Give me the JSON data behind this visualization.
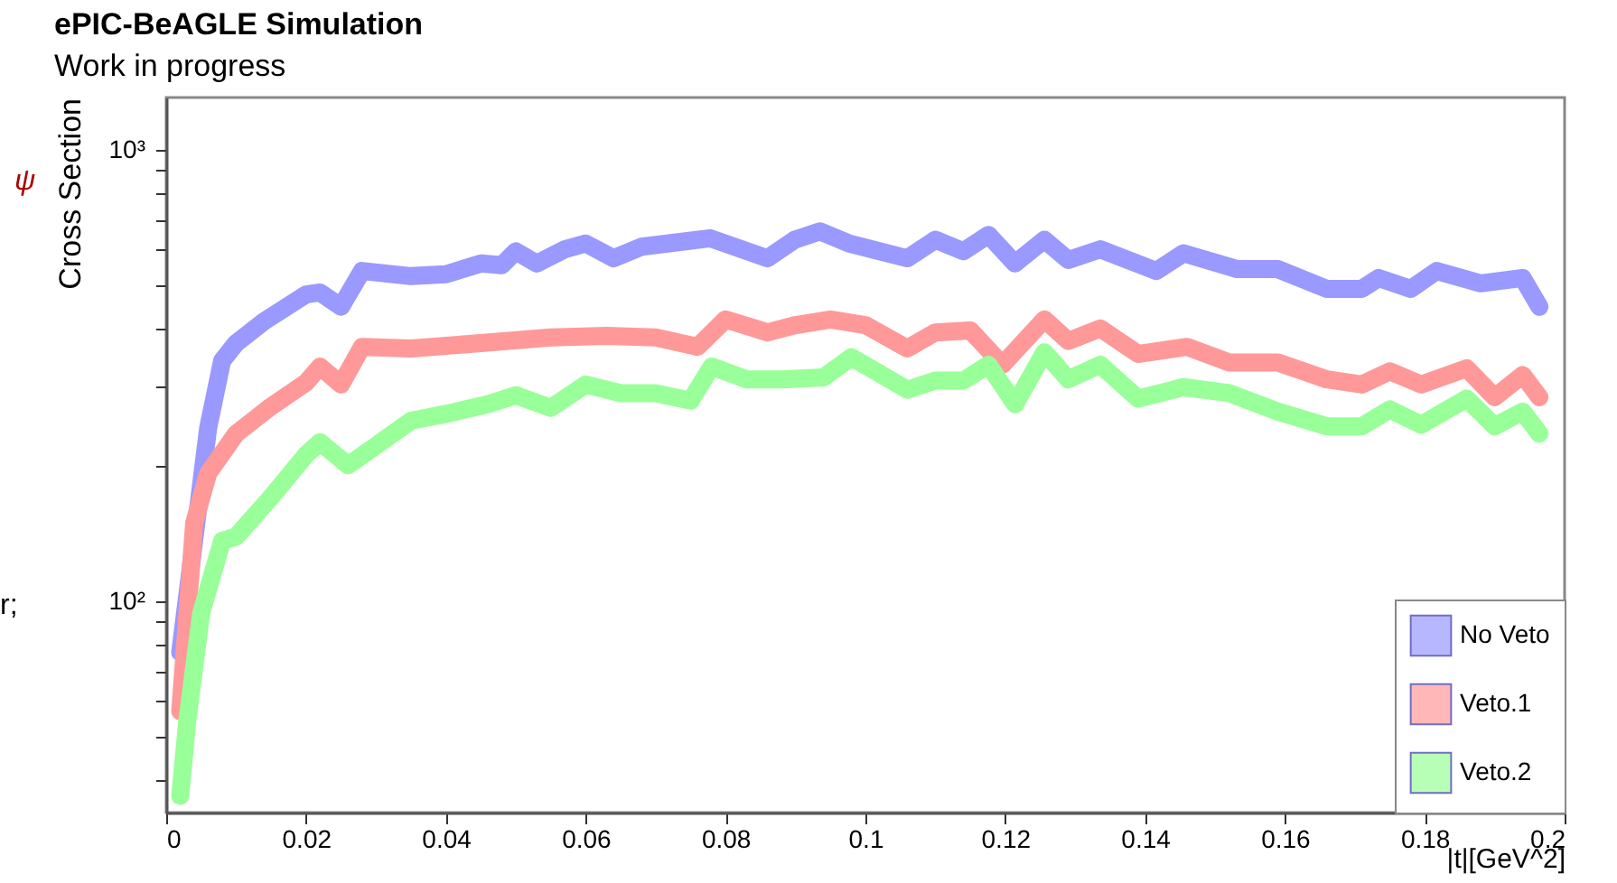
{
  "chart_data": {
    "type": "line",
    "title": "ePIC-BeAGLE Simulation",
    "subtitle": "Work in progress",
    "xlabel": "|t|[GeV^2]",
    "ylabel": "Cross Section",
    "annotations": [
      "ψ",
      "r;"
    ],
    "log": "y",
    "grid": false,
    "legend": "bottom right",
    "marker": "none",
    "line_style": "solid",
    "xlim": [
      0,
      0.2
    ],
    "xticks": [
      0,
      0.02,
      0.04,
      0.06,
      0.08,
      0.1,
      0.12,
      0.14,
      0.16,
      0.18,
      0.2
    ],
    "ylim": [
      34,
      1306
    ],
    "yticks": [
      {
        "value": 40,
        "label": null
      },
      {
        "value": 50,
        "label": null
      },
      {
        "value": 60,
        "label": null
      },
      {
        "value": 70,
        "label": null
      },
      {
        "value": 80,
        "label": null
      },
      {
        "value": 90,
        "label": null
      },
      {
        "value": 100,
        "label": "10²"
      },
      {
        "value": 200,
        "label": null
      },
      {
        "value": 300,
        "label": null
      },
      {
        "value": 400,
        "label": null
      },
      {
        "value": 500,
        "label": null
      },
      {
        "value": 600,
        "label": null
      },
      {
        "value": 700,
        "label": null
      },
      {
        "value": 800,
        "label": null
      },
      {
        "value": 900,
        "label": null
      },
      {
        "value": 1000,
        "label": "10³"
      }
    ],
    "series": [
      {
        "name": "No Veto",
        "color": "#9999ff",
        "x": [
          0.002,
          0.006,
          0.008,
          0.01,
          0.014,
          0.02,
          0.022,
          0.025,
          0.028,
          0.035,
          0.04,
          0.045,
          0.048,
          0.05,
          0.053,
          0.057,
          0.06,
          0.064,
          0.068,
          0.0778,
          0.086,
          0.0899,
          0.0935,
          0.0977,
          0.106,
          0.11,
          0.114,
          0.1176,
          0.1214,
          0.1256,
          0.129,
          0.1336,
          0.1416,
          0.1455,
          0.1532,
          0.159,
          0.166,
          0.171,
          0.1734,
          0.178,
          0.1817,
          0.188,
          0.194,
          0.1964
        ],
        "values": [
          77,
          242,
          341,
          373,
          417,
          478,
          483,
          449,
          539,
          525,
          530,
          560,
          555,
          596,
          560,
          602,
          620,
          575,
          610,
          637,
          575,
          632,
          660,
          620,
          575,
          632,
          596,
          648,
          560,
          632,
          570,
          602,
          539,
          590,
          544,
          544,
          492,
          492,
          520,
          492,
          539,
          506,
          520,
          449
        ]
      },
      {
        "name": "Veto.1",
        "color": "#ff9999",
        "x": [
          0.002,
          0.004,
          0.006,
          0.01,
          0.015,
          0.02,
          0.022,
          0.025,
          0.028,
          0.035,
          0.045,
          0.055,
          0.063,
          0.07,
          0.076,
          0.08,
          0.086,
          0.09,
          0.095,
          0.1,
          0.106,
          0.11,
          0.115,
          0.1196,
          0.1256,
          0.129,
          0.1336,
          0.139,
          0.146,
          0.152,
          0.159,
          0.166,
          0.171,
          0.175,
          0.1795,
          0.186,
          0.19,
          0.194,
          0.1964
        ],
        "values": [
          57,
          149,
          192,
          235,
          270,
          305,
          331,
          302,
          366,
          363,
          373,
          384,
          387,
          384,
          366,
          421,
          394,
          409,
          421,
          409,
          363,
          394,
          398,
          334,
          421,
          377,
          402,
          353,
          366,
          338,
          338,
          310,
          302,
          323,
          302,
          328,
          283,
          317,
          283
        ]
      },
      {
        "name": "Veto.2",
        "color": "#99ff99",
        "x": [
          0.002,
          0.003,
          0.005,
          0.008,
          0.01,
          0.015,
          0.02,
          0.022,
          0.026,
          0.03,
          0.035,
          0.04,
          0.046,
          0.05,
          0.055,
          0.06,
          0.065,
          0.07,
          0.075,
          0.078,
          0.083,
          0.088,
          0.094,
          0.098,
          0.106,
          0.11,
          0.114,
          0.1176,
          0.1214,
          0.1256,
          0.129,
          0.1336,
          0.139,
          0.1455,
          0.152,
          0.159,
          0.166,
          0.171,
          0.175,
          0.1795,
          0.186,
          0.19,
          0.194,
          0.1964
        ],
        "values": [
          37,
          54,
          94,
          136,
          139,
          170,
          211,
          225,
          200,
          221,
          251,
          260,
          273,
          286,
          268,
          302,
          289,
          289,
          278,
          331,
          310,
          310,
          313,
          347,
          294,
          308,
          308,
          334,
          273,
          356,
          310,
          334,
          281,
          298,
          289,
          263,
          244,
          244,
          266,
          246,
          281,
          244,
          263,
          235
        ]
      }
    ]
  }
}
